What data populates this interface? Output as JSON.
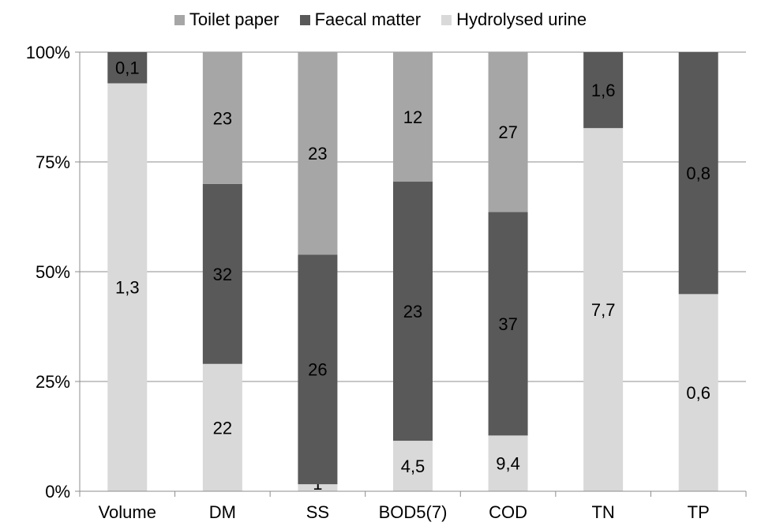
{
  "chart_data": {
    "type": "bar",
    "stacked": "percent",
    "categories": [
      "Volume",
      "DM",
      "SS",
      "BOD5(7)",
      "COD",
      "TN",
      "TP"
    ],
    "series": [
      {
        "name": "Hydrolysed urine",
        "color": "#d9d9d9",
        "share": [
          0.929,
          0.29,
          0.016,
          0.115,
          0.127,
          0.827,
          0.449
        ],
        "labels": [
          "1,3",
          "22",
          "1",
          "4,5",
          "9,4",
          "7,7",
          "0,6"
        ]
      },
      {
        "name": "Faecal matter",
        "color": "#595959",
        "share": [
          0.071,
          0.41,
          0.523,
          0.59,
          0.509,
          0.173,
          0.551
        ],
        "labels": [
          "0,1",
          "32",
          "26",
          "23",
          "37",
          "1,6",
          "0,8"
        ]
      },
      {
        "name": "Toilet paper",
        "color": "#a6a6a6",
        "share": [
          0.0,
          0.3,
          0.461,
          0.295,
          0.364,
          0.0,
          0.0
        ],
        "labels": [
          "",
          "23",
          "23",
          "12",
          "27",
          "",
          ""
        ]
      }
    ],
    "legend_order": [
      "Toilet paper",
      "Faecal matter",
      "Hydrolysed urine"
    ],
    "yticks": [
      "0%",
      "25%",
      "50%",
      "75%",
      "100%"
    ],
    "ylim": [
      0,
      100
    ],
    "grid": true,
    "legend_position": "top"
  }
}
